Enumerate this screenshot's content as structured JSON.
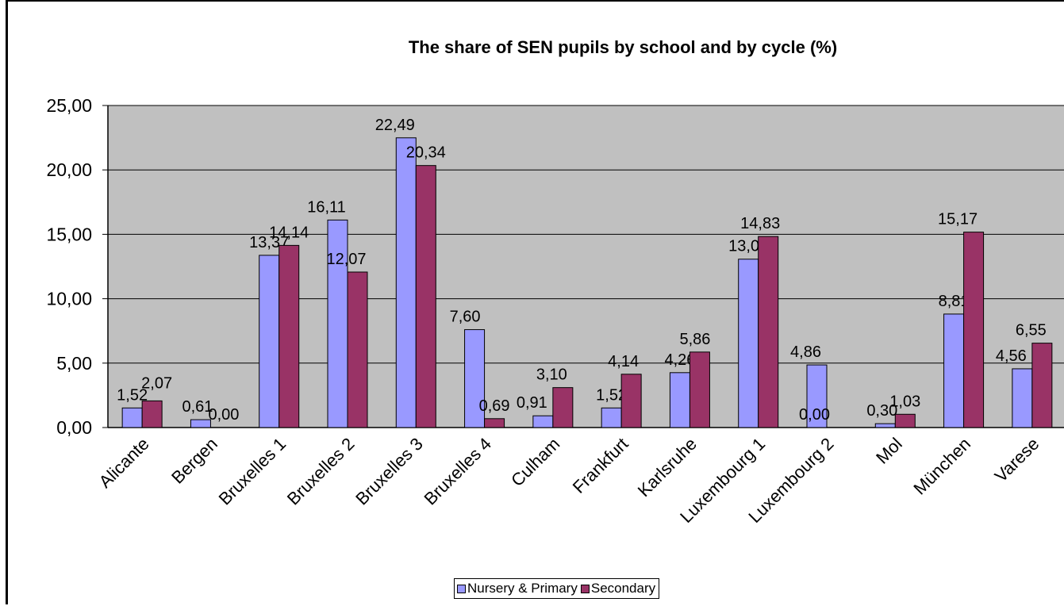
{
  "chart_data": {
    "type": "bar",
    "title": "The share of SEN pupils by school and by cycle (%)",
    "xlabel": "",
    "ylabel": "",
    "ylim": [
      0,
      25
    ],
    "yticks": [
      "0,00",
      "5,00",
      "10,00",
      "15,00",
      "20,00",
      "25,00"
    ],
    "grid": true,
    "legend_position": "bottom",
    "categories": [
      "Alicante",
      "Bergen",
      "Bruxelles 1",
      "Bruxelles 2",
      "Bruxelles 3",
      "Bruxelles 4",
      "Culham",
      "Frankfurt",
      "Karlsruhe",
      "Luxembourg 1",
      "Luxembourg 2",
      "Mol",
      "München",
      "Varese"
    ],
    "series": [
      {
        "name": "Nursery & Primary",
        "color": "#9999ff",
        "values": [
          1.52,
          0.61,
          13.37,
          16.11,
          22.49,
          7.6,
          0.91,
          1.52,
          4.26,
          13.07,
          4.86,
          0.3,
          8.81,
          4.56
        ],
        "labels": [
          "1,52",
          "0,61",
          "13,37",
          "16,11",
          "22,49",
          "7,60",
          "0,91",
          "1,52",
          "4,26",
          "13,07",
          "4,86",
          "0,30",
          "8,81",
          "4,56"
        ]
      },
      {
        "name": "Secondary",
        "color": "#993366",
        "values": [
          2.07,
          0.0,
          14.14,
          12.07,
          20.34,
          0.69,
          3.1,
          4.14,
          5.86,
          14.83,
          0.0,
          1.03,
          15.17,
          6.55
        ],
        "labels": [
          "2,07",
          "0,00",
          "14,14",
          "12,07",
          "20,34",
          "0,69",
          "3,10",
          "4,14",
          "5,86",
          "14,83",
          "0,00",
          "1,03",
          "15,17",
          "6,55"
        ]
      }
    ],
    "plot_background": "#c0c0c0"
  }
}
